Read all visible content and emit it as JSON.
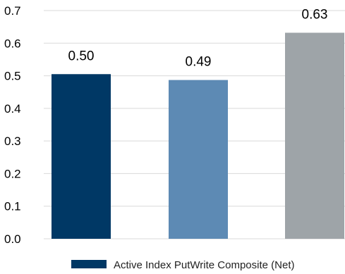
{
  "chart_data": {
    "type": "bar",
    "title": "",
    "xlabel": "",
    "ylabel": "",
    "ylim": [
      0,
      0.7
    ],
    "yticks": [
      "0.0",
      "0.1",
      "0.2",
      "0.3",
      "0.4",
      "0.5",
      "0.6",
      "0.7"
    ],
    "grid": "horizontal",
    "legend_position": "bottom",
    "bars": [
      {
        "value": 0.505,
        "label": "0.50",
        "color": "#003865"
      },
      {
        "value": 0.487,
        "label": "0.49",
        "color": "#5d8ab4"
      },
      {
        "value": 0.632,
        "label": "0.63",
        "color": "#9ea4a8"
      }
    ],
    "legend": [
      {
        "label": "Active Index PutWrite Composite (Net)",
        "color": "#003865"
      }
    ]
  }
}
